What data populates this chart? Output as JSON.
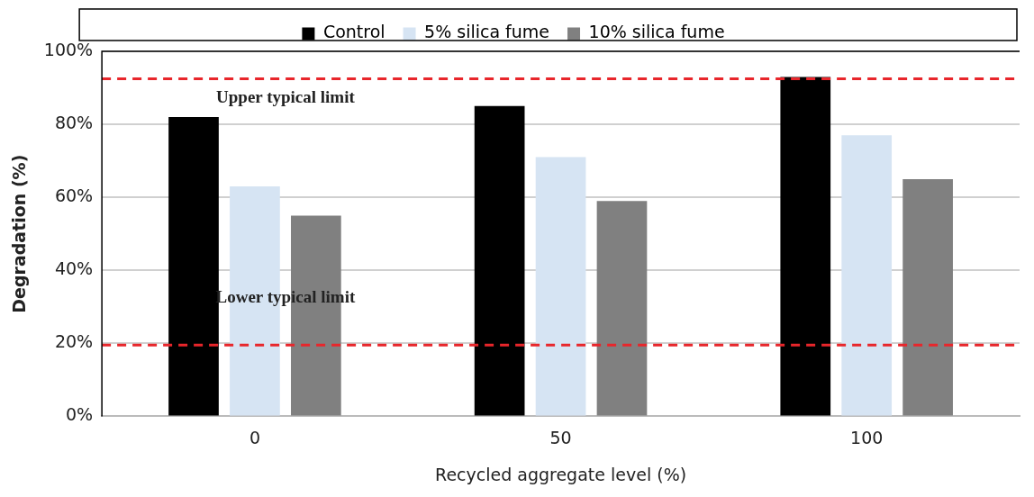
{
  "chart_data": {
    "type": "bar",
    "xlabel": "Recycled aggregate level (%)",
    "ylabel": "Degradation (%)",
    "categories": [
      "0",
      "50",
      "100"
    ],
    "series": [
      {
        "name": "Control",
        "color": "#000000",
        "values": [
          82,
          85,
          93
        ]
      },
      {
        "name": "5% silica fume",
        "color": "#d6e4f3",
        "values": [
          63,
          71,
          77
        ]
      },
      {
        "name": "10% silica fume",
        "color": "#808080",
        "values": [
          55,
          59,
          65
        ]
      }
    ],
    "ylim": [
      0,
      100
    ],
    "yticks": [
      {
        "value": 0,
        "label": "0%"
      },
      {
        "value": 20,
        "label": "20%"
      },
      {
        "value": 40,
        "label": "40%"
      },
      {
        "value": 60,
        "label": "60%"
      },
      {
        "value": 80,
        "label": "80%"
      },
      {
        "value": 100,
        "label": "100%"
      }
    ],
    "grid": "y",
    "legend": "top",
    "ref_lines": [
      {
        "axis": "y",
        "value": 92.5,
        "label": "Upper typical limit",
        "color": "#e8262b",
        "line_style": "dashed"
      },
      {
        "axis": "y",
        "value": 19.5,
        "label": "Lower typical limit",
        "color": "#e8262b",
        "line_style": "dashed"
      }
    ]
  }
}
